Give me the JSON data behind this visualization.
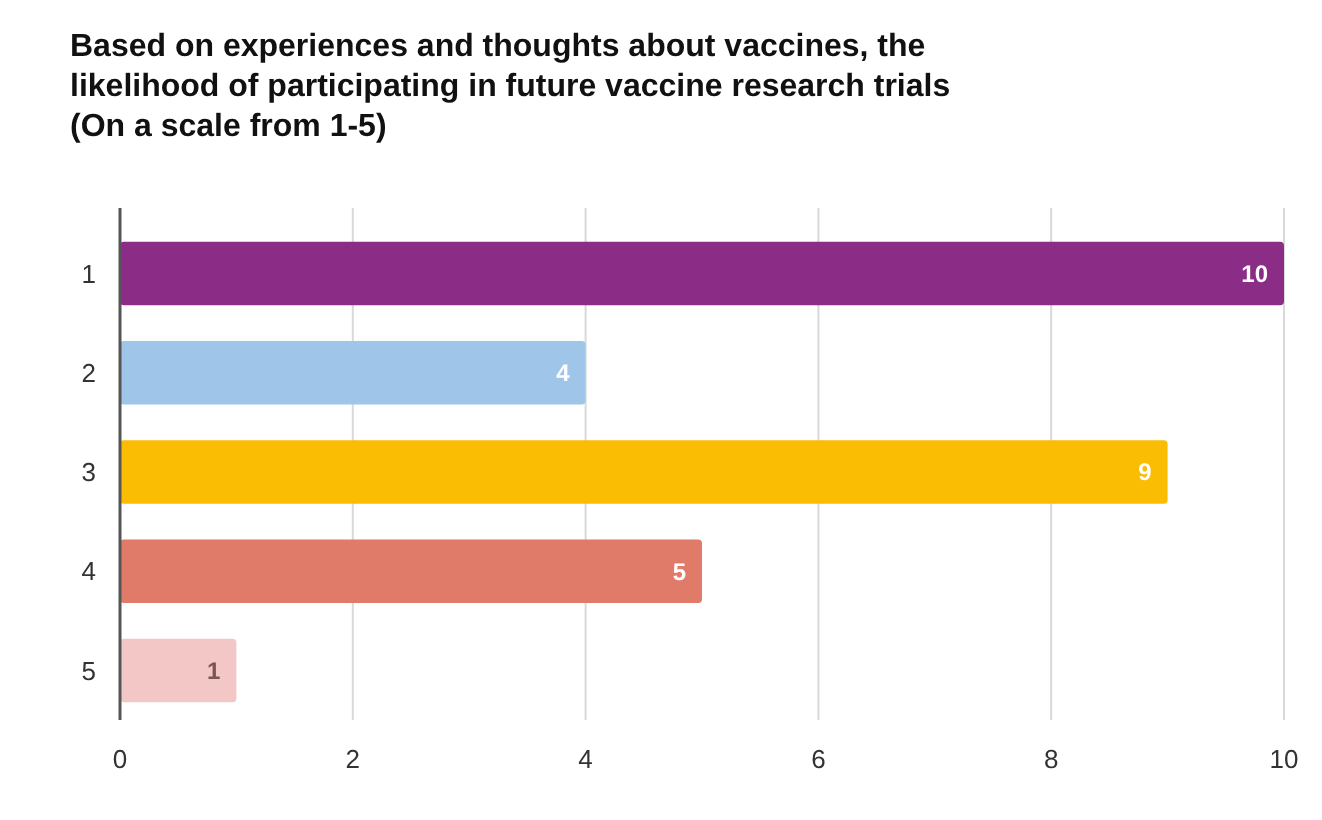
{
  "chart_data": {
    "type": "bar",
    "orientation": "horizontal",
    "title": "Based on experiences and thoughts about vaccines, the\nlikelihood of participating in future vaccine research trials\n(On a scale from 1-5)",
    "categories": [
      "1",
      "2",
      "3",
      "4",
      "5"
    ],
    "values": [
      10,
      4,
      9,
      5,
      1
    ],
    "colors": [
      "#8b2c87",
      "#9fc5e8",
      "#fbbc04",
      "#e07b69",
      "#f4c7c7"
    ],
    "xlim": [
      0,
      10
    ],
    "xticks": [
      0,
      2,
      4,
      6,
      8,
      10
    ],
    "grid": "x",
    "data_labels": true
  }
}
